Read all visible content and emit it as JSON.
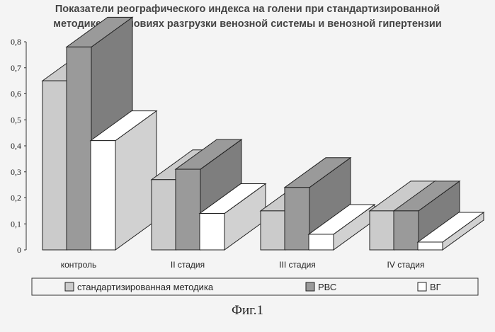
{
  "chart_data": {
    "type": "bar",
    "title_line1": "Показатели реографического индекса на голени при стандартизированной",
    "title_line2": "методике, в условиях разгрузки венозной системы и венозной гипертензии",
    "categories": [
      "контроль",
      "II стадия",
      "III стадия",
      "IV стадия"
    ],
    "series": [
      {
        "name": "стандартизированная методика",
        "values": [
          0.65,
          0.27,
          0.15,
          0.15
        ],
        "color": "#cbcbcb"
      },
      {
        "name": "РВС",
        "values": [
          0.78,
          0.31,
          0.24,
          0.15
        ],
        "color": "#9a9a9a"
      },
      {
        "name": "ВГ",
        "values": [
          0.42,
          0.14,
          0.06,
          0.03
        ],
        "color": "#ffffff"
      }
    ],
    "yticks": [
      "0",
      "0,1",
      "0,2",
      "0,3",
      "0,4",
      "0,5",
      "0,6",
      "0,7",
      "0,8"
    ],
    "ylim": [
      0,
      0.8
    ],
    "legend_position": "bottom",
    "grid": false,
    "style": "3d-bar"
  },
  "caption": "Фиг.1"
}
